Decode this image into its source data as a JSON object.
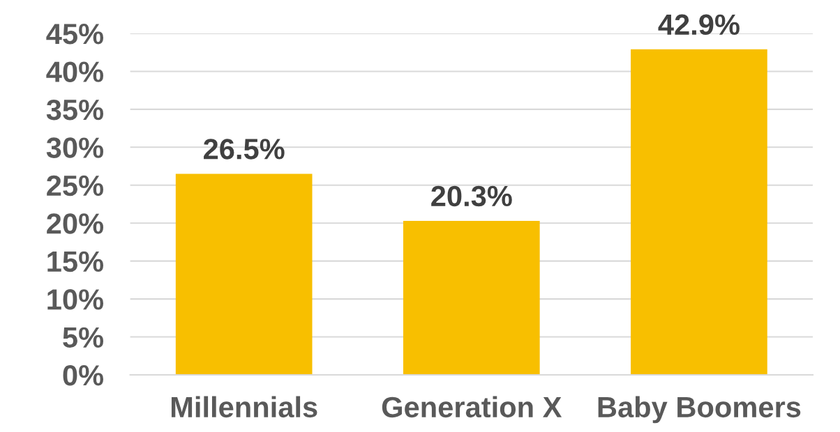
{
  "chart_data": {
    "type": "bar",
    "categories": [
      "Millennials",
      "Generation X",
      "Baby Boomers"
    ],
    "values": [
      26.5,
      20.3,
      42.9
    ],
    "color": "#f8bf00",
    "value_labels": [
      "26.5%",
      "20.3%",
      "42.9%"
    ],
    "ylim": [
      0,
      45
    ],
    "yticks": [
      {
        "value": 0,
        "label": "0%"
      },
      {
        "value": 5,
        "label": "5%"
      },
      {
        "value": 10,
        "label": "10%"
      },
      {
        "value": 15,
        "label": "15%"
      },
      {
        "value": 20,
        "label": "20%"
      },
      {
        "value": 25,
        "label": "25%"
      },
      {
        "value": 30,
        "label": "30%"
      },
      {
        "value": 35,
        "label": "35%"
      },
      {
        "value": 40,
        "label": "40%"
      },
      {
        "value": 45,
        "label": "45%"
      }
    ],
    "grid": "y"
  }
}
